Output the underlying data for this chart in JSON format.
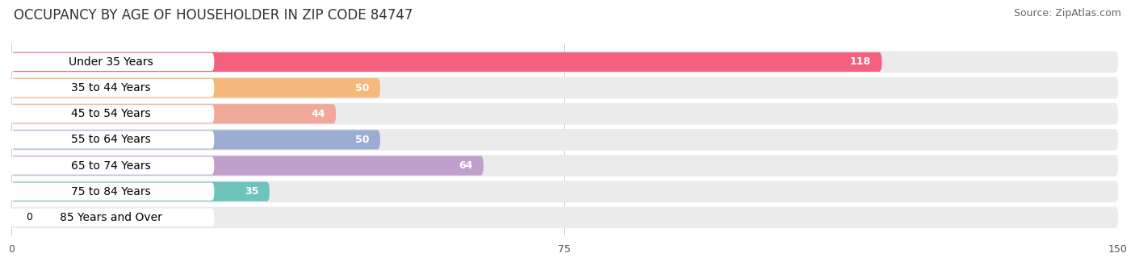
{
  "title": "OCCUPANCY BY AGE OF HOUSEHOLDER IN ZIP CODE 84747",
  "source": "Source: ZipAtlas.com",
  "categories": [
    "Under 35 Years",
    "35 to 44 Years",
    "45 to 54 Years",
    "55 to 64 Years",
    "65 to 74 Years",
    "75 to 84 Years",
    "85 Years and Over"
  ],
  "values": [
    118,
    50,
    44,
    50,
    64,
    35,
    0
  ],
  "bar_colors": [
    "#F4617F",
    "#F5B97B",
    "#F0A898",
    "#9BADD4",
    "#C09FCC",
    "#6DC4BA",
    "#B8BFEC"
  ],
  "xlim": [
    0,
    150
  ],
  "xticks": [
    0,
    75,
    150
  ],
  "background_color": "#ffffff",
  "bar_bg_color": "#ebebeb",
  "row_bg_color": "#f7f7f7",
  "title_fontsize": 12,
  "source_fontsize": 9,
  "label_fontsize": 10,
  "value_fontsize": 9
}
